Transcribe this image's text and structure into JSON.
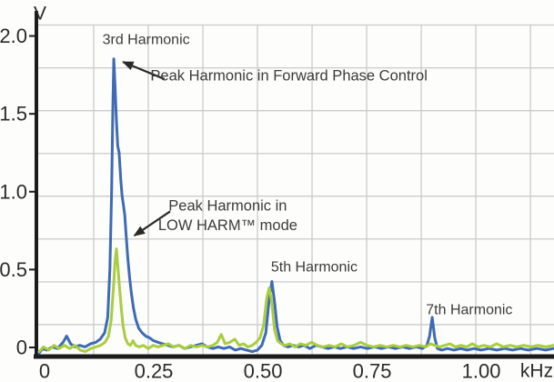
{
  "figure": {
    "background": "#fdfdfc",
    "axis_color": "#1c1c1c",
    "tick_text_color": "#2b2b2b",
    "annotation_text_color": "#3b3b3b",
    "grid_color": "#cbcbcb"
  },
  "chart_data": {
    "type": "line",
    "title": "",
    "xlabel": "kHz",
    "ylabel": "V",
    "xlim": [
      0,
      1.179
    ],
    "ylim": [
      0,
      2.12
    ],
    "legend_position": "none",
    "grid": {
      "x_values": [
        0.125,
        0.25,
        0.375,
        0.5,
        0.625,
        0.75,
        0.875,
        1.0,
        1.125
      ],
      "y_values": [
        0.193,
        0.468,
        0.743,
        1.018,
        1.292,
        1.567,
        1.842,
        2.117
      ]
    },
    "x_ticks": [
      {
        "value": 0.0,
        "label": "0"
      },
      {
        "value": 0.25,
        "label": "0.25"
      },
      {
        "value": 0.5,
        "label": "0.50"
      },
      {
        "value": 0.75,
        "label": "0.75"
      },
      {
        "value": 1.0,
        "label": "1.00"
      }
    ],
    "y_ticks": [
      {
        "value": 0.0,
        "label": "0"
      },
      {
        "value": 0.5,
        "label": "0.5"
      },
      {
        "value": 1.0,
        "label": "1.0"
      },
      {
        "value": 1.5,
        "label": "1.5"
      },
      {
        "value": 2.0,
        "label": "2.0"
      }
    ],
    "peaks": {
      "3rd_harmonic_kHz": 0.17,
      "5th_harmonic_kHz": 0.53,
      "7th_harmonic_kHz": 0.9,
      "forward_phase_peak_V": {
        "3rd": 1.9,
        "5th": 0.47,
        "7th": 0.24
      },
      "low_harm_peak_V": {
        "3rd": 0.68,
        "5th": 0.43,
        "7th": 0.06
      }
    },
    "series": [
      {
        "name": "Peak Harmonic in Forward Phase Control",
        "color": "#3e6bb4",
        "stroke_width": 3,
        "points": [
          [
            0.0,
            0.01
          ],
          [
            0.008,
            0.04
          ],
          [
            0.018,
            0.03
          ],
          [
            0.03,
            0.05
          ],
          [
            0.042,
            0.04
          ],
          [
            0.055,
            0.08
          ],
          [
            0.063,
            0.12
          ],
          [
            0.072,
            0.07
          ],
          [
            0.082,
            0.05
          ],
          [
            0.093,
            0.06
          ],
          [
            0.105,
            0.05
          ],
          [
            0.118,
            0.07
          ],
          [
            0.13,
            0.08
          ],
          [
            0.14,
            0.1
          ],
          [
            0.15,
            0.14
          ],
          [
            0.157,
            0.24
          ],
          [
            0.162,
            0.55
          ],
          [
            0.166,
            1.05
          ],
          [
            0.169,
            1.6
          ],
          [
            0.171,
            1.9
          ],
          [
            0.174,
            1.72
          ],
          [
            0.177,
            1.5
          ],
          [
            0.18,
            1.34
          ],
          [
            0.183,
            1.3
          ],
          [
            0.187,
            1.12
          ],
          [
            0.19,
            1.02
          ],
          [
            0.193,
            0.96
          ],
          [
            0.196,
            0.9
          ],
          [
            0.199,
            0.78
          ],
          [
            0.203,
            0.62
          ],
          [
            0.207,
            0.5
          ],
          [
            0.211,
            0.4
          ],
          [
            0.216,
            0.3
          ],
          [
            0.221,
            0.23
          ],
          [
            0.228,
            0.17
          ],
          [
            0.236,
            0.14
          ],
          [
            0.244,
            0.12
          ],
          [
            0.252,
            0.11
          ],
          [
            0.262,
            0.09
          ],
          [
            0.272,
            0.08
          ],
          [
            0.283,
            0.07
          ],
          [
            0.295,
            0.06
          ],
          [
            0.307,
            0.05
          ],
          [
            0.32,
            0.06
          ],
          [
            0.333,
            0.04
          ],
          [
            0.346,
            0.05
          ],
          [
            0.36,
            0.06
          ],
          [
            0.373,
            0.07
          ],
          [
            0.385,
            0.05
          ],
          [
            0.398,
            0.04
          ],
          [
            0.41,
            0.05
          ],
          [
            0.423,
            0.04
          ],
          [
            0.436,
            0.05
          ],
          [
            0.449,
            0.03
          ],
          [
            0.462,
            0.04
          ],
          [
            0.475,
            0.03
          ],
          [
            0.488,
            0.02
          ],
          [
            0.5,
            0.03
          ],
          [
            0.51,
            0.06
          ],
          [
            0.519,
            0.14
          ],
          [
            0.527,
            0.36
          ],
          [
            0.533,
            0.47
          ],
          [
            0.539,
            0.34
          ],
          [
            0.545,
            0.18
          ],
          [
            0.552,
            0.09
          ],
          [
            0.56,
            0.06
          ],
          [
            0.57,
            0.05
          ],
          [
            0.582,
            0.06
          ],
          [
            0.594,
            0.05
          ],
          [
            0.607,
            0.06
          ],
          [
            0.62,
            0.04
          ],
          [
            0.634,
            0.06
          ],
          [
            0.648,
            0.05
          ],
          [
            0.662,
            0.04
          ],
          [
            0.676,
            0.05
          ],
          [
            0.69,
            0.04
          ],
          [
            0.705,
            0.05
          ],
          [
            0.72,
            0.04
          ],
          [
            0.736,
            0.05
          ],
          [
            0.752,
            0.04
          ],
          [
            0.768,
            0.05
          ],
          [
            0.784,
            0.04
          ],
          [
            0.8,
            0.05
          ],
          [
            0.816,
            0.04
          ],
          [
            0.832,
            0.05
          ],
          [
            0.848,
            0.04
          ],
          [
            0.864,
            0.05
          ],
          [
            0.878,
            0.04
          ],
          [
            0.888,
            0.06
          ],
          [
            0.894,
            0.12
          ],
          [
            0.9,
            0.24
          ],
          [
            0.906,
            0.11
          ],
          [
            0.912,
            0.04
          ],
          [
            0.922,
            0.03
          ],
          [
            0.935,
            0.04
          ],
          [
            0.95,
            0.03
          ],
          [
            0.965,
            0.04
          ],
          [
            0.98,
            0.03
          ],
          [
            0.996,
            0.04
          ],
          [
            1.012,
            0.03
          ],
          [
            1.03,
            0.04
          ],
          [
            1.048,
            0.03
          ],
          [
            1.066,
            0.04
          ],
          [
            1.084,
            0.03
          ],
          [
            1.102,
            0.04
          ],
          [
            1.12,
            0.03
          ],
          [
            1.14,
            0.04
          ],
          [
            1.16,
            0.03
          ],
          [
            1.178,
            0.04
          ]
        ]
      },
      {
        "name": "Peak Harmonic in LOW HARM™ mode",
        "color": "#a9cd3f",
        "stroke_width": 3,
        "points": [
          [
            0.0,
            0.02
          ],
          [
            0.01,
            0.05
          ],
          [
            0.022,
            0.03
          ],
          [
            0.034,
            0.06
          ],
          [
            0.046,
            0.04
          ],
          [
            0.058,
            0.06
          ],
          [
            0.07,
            0.04
          ],
          [
            0.082,
            0.06
          ],
          [
            0.094,
            0.03
          ],
          [
            0.106,
            0.02
          ],
          [
            0.118,
            0.04
          ],
          [
            0.13,
            0.05
          ],
          [
            0.141,
            0.06
          ],
          [
            0.151,
            0.08
          ],
          [
            0.159,
            0.12
          ],
          [
            0.165,
            0.22
          ],
          [
            0.17,
            0.42
          ],
          [
            0.174,
            0.6
          ],
          [
            0.177,
            0.68
          ],
          [
            0.18,
            0.58
          ],
          [
            0.184,
            0.44
          ],
          [
            0.188,
            0.3
          ],
          [
            0.192,
            0.19
          ],
          [
            0.197,
            0.11
          ],
          [
            0.203,
            0.07
          ],
          [
            0.209,
            0.06
          ],
          [
            0.215,
            0.09
          ],
          [
            0.221,
            0.06
          ],
          [
            0.229,
            0.05
          ],
          [
            0.239,
            0.06
          ],
          [
            0.25,
            0.04
          ],
          [
            0.261,
            0.06
          ],
          [
            0.272,
            0.05
          ],
          [
            0.284,
            0.06
          ],
          [
            0.296,
            0.07
          ],
          [
            0.308,
            0.05
          ],
          [
            0.321,
            0.06
          ],
          [
            0.334,
            0.04
          ],
          [
            0.347,
            0.06
          ],
          [
            0.36,
            0.05
          ],
          [
            0.373,
            0.06
          ],
          [
            0.386,
            0.05
          ],
          [
            0.398,
            0.06
          ],
          [
            0.408,
            0.08
          ],
          [
            0.417,
            0.13
          ],
          [
            0.426,
            0.07
          ],
          [
            0.437,
            0.08
          ],
          [
            0.448,
            0.1
          ],
          [
            0.458,
            0.06
          ],
          [
            0.468,
            0.07
          ],
          [
            0.478,
            0.05
          ],
          [
            0.488,
            0.06
          ],
          [
            0.497,
            0.08
          ],
          [
            0.506,
            0.11
          ],
          [
            0.514,
            0.19
          ],
          [
            0.521,
            0.36
          ],
          [
            0.527,
            0.43
          ],
          [
            0.533,
            0.33
          ],
          [
            0.539,
            0.16
          ],
          [
            0.546,
            0.09
          ],
          [
            0.554,
            0.07
          ],
          [
            0.563,
            0.06
          ],
          [
            0.574,
            0.07
          ],
          [
            0.586,
            0.05
          ],
          [
            0.598,
            0.07
          ],
          [
            0.611,
            0.06
          ],
          [
            0.624,
            0.08
          ],
          [
            0.637,
            0.06
          ],
          [
            0.65,
            0.05
          ],
          [
            0.664,
            0.06
          ],
          [
            0.678,
            0.05
          ],
          [
            0.692,
            0.07
          ],
          [
            0.706,
            0.05
          ],
          [
            0.721,
            0.06
          ],
          [
            0.736,
            0.08
          ],
          [
            0.751,
            0.06
          ],
          [
            0.766,
            0.05
          ],
          [
            0.781,
            0.06
          ],
          [
            0.796,
            0.05
          ],
          [
            0.811,
            0.06
          ],
          [
            0.826,
            0.05
          ],
          [
            0.841,
            0.06
          ],
          [
            0.856,
            0.05
          ],
          [
            0.871,
            0.06
          ],
          [
            0.886,
            0.05
          ],
          [
            0.896,
            0.07
          ],
          [
            0.906,
            0.06
          ],
          [
            0.917,
            0.05
          ],
          [
            0.929,
            0.06
          ],
          [
            0.941,
            0.07
          ],
          [
            0.953,
            0.05
          ],
          [
            0.966,
            0.06
          ],
          [
            0.979,
            0.05
          ],
          [
            0.992,
            0.07
          ],
          [
            1.005,
            0.05
          ],
          [
            1.019,
            0.06
          ],
          [
            1.033,
            0.05
          ],
          [
            1.048,
            0.07
          ],
          [
            1.063,
            0.05
          ],
          [
            1.078,
            0.06
          ],
          [
            1.094,
            0.05
          ],
          [
            1.11,
            0.06
          ],
          [
            1.126,
            0.05
          ],
          [
            1.143,
            0.06
          ],
          [
            1.16,
            0.05
          ],
          [
            1.178,
            0.06
          ]
        ]
      }
    ],
    "annotations": [
      {
        "id": "annotation-3rd-harmonic",
        "text": "3rd Harmonic",
        "x": 0.245,
        "y": 2.02,
        "anchor": "middle",
        "font_size": 16
      },
      {
        "id": "annotation-forward-phase",
        "text": "Peak Harmonic in Forward Phase Control",
        "x": 0.255,
        "y": 1.79,
        "anchor": "start",
        "font_size": 16.5
      },
      {
        "id": "annotation-low-harm-line1",
        "text": "Peak Harmonic in",
        "x": 0.432,
        "y": 0.955,
        "anchor": "middle",
        "font_size": 16.5
      },
      {
        "id": "annotation-low-harm-line2",
        "text": "LOW HARM™ mode",
        "x": 0.432,
        "y": 0.83,
        "anchor": "middle",
        "font_size": 16.5
      },
      {
        "id": "annotation-5th-harmonic",
        "text": "5th Harmonic",
        "x": 0.63,
        "y": 0.56,
        "anchor": "middle",
        "font_size": 16
      },
      {
        "id": "annotation-7th-harmonic",
        "text": "7th Harmonic",
        "x": 0.985,
        "y": 0.285,
        "anchor": "middle",
        "font_size": 16
      }
    ],
    "arrows": [
      {
        "id": "arrow-forward-phase",
        "x1": 0.287,
        "y1": 1.77,
        "x2": 0.192,
        "y2": 1.88
      },
      {
        "id": "arrow-low-harm",
        "x1": 0.3,
        "y1": 0.92,
        "x2": 0.218,
        "y2": 0.765
      }
    ]
  }
}
